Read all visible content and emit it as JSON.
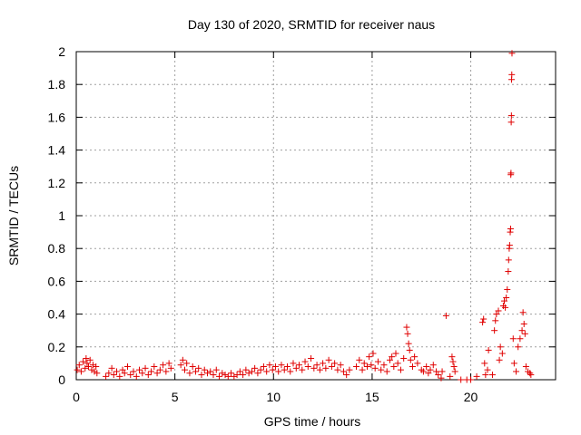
{
  "chart_data": {
    "type": "scatter",
    "title": "Day 130 of 2020, SRMTID for receiver naus",
    "xlabel": "GPS time / hours",
    "ylabel": "SRMTID / TECUs",
    "xlim": [
      0,
      24.3
    ],
    "ylim": [
      0,
      2
    ],
    "x_ticks": [
      0,
      5,
      10,
      15,
      20
    ],
    "x_tick_labels": [
      "0",
      "5",
      "10",
      "15",
      "20"
    ],
    "y_ticks": [
      0,
      0.2,
      0.4,
      0.6,
      0.8,
      1,
      1.2,
      1.4,
      1.6,
      1.8,
      2
    ],
    "y_tick_labels": [
      "0",
      "0.2",
      "0.4",
      "0.6",
      "0.8",
      "1",
      "1.2",
      "1.4",
      "1.6",
      "1.8",
      "2"
    ],
    "grid": true,
    "marker": "+",
    "color": "#e00000",
    "series": [
      {
        "name": "SRMTID",
        "points": [
          [
            0.05,
            0.06
          ],
          [
            0.15,
            0.09
          ],
          [
            0.25,
            0.05
          ],
          [
            0.35,
            0.11
          ],
          [
            0.45,
            0.07
          ],
          [
            0.5,
            0.13
          ],
          [
            0.55,
            0.1
          ],
          [
            0.62,
            0.08
          ],
          [
            0.7,
            0.12
          ],
          [
            0.78,
            0.06
          ],
          [
            0.85,
            0.09
          ],
          [
            0.92,
            0.05
          ],
          [
            1.0,
            0.08
          ],
          [
            1.05,
            0.04
          ],
          [
            1.5,
            0.02
          ],
          [
            1.65,
            0.04
          ],
          [
            1.8,
            0.07
          ],
          [
            1.9,
            0.03
          ],
          [
            2.05,
            0.05
          ],
          [
            2.2,
            0.02
          ],
          [
            2.35,
            0.06
          ],
          [
            2.45,
            0.04
          ],
          [
            2.6,
            0.08
          ],
          [
            2.75,
            0.03
          ],
          [
            2.9,
            0.05
          ],
          [
            3.05,
            0.02
          ],
          [
            3.2,
            0.06
          ],
          [
            3.35,
            0.04
          ],
          [
            3.5,
            0.07
          ],
          [
            3.65,
            0.03
          ],
          [
            3.8,
            0.05
          ],
          [
            3.95,
            0.08
          ],
          [
            4.1,
            0.04
          ],
          [
            4.25,
            0.06
          ],
          [
            4.4,
            0.09
          ],
          [
            4.55,
            0.05
          ],
          [
            4.7,
            0.1
          ],
          [
            4.8,
            0.07
          ],
          [
            5.3,
            0.09
          ],
          [
            5.4,
            0.12
          ],
          [
            5.5,
            0.06
          ],
          [
            5.6,
            0.1
          ],
          [
            5.75,
            0.04
          ],
          [
            5.9,
            0.08
          ],
          [
            6.05,
            0.05
          ],
          [
            6.2,
            0.07
          ],
          [
            6.35,
            0.03
          ],
          [
            6.5,
            0.06
          ],
          [
            6.65,
            0.04
          ],
          [
            6.8,
            0.05
          ],
          [
            6.95,
            0.03
          ],
          [
            7.1,
            0.06
          ],
          [
            7.25,
            0.02
          ],
          [
            7.4,
            0.04
          ],
          [
            7.55,
            0.03
          ],
          [
            7.7,
            0.02
          ],
          [
            7.85,
            0.04
          ],
          [
            8.0,
            0.02
          ],
          [
            8.15,
            0.03
          ],
          [
            8.3,
            0.05
          ],
          [
            8.45,
            0.03
          ],
          [
            8.6,
            0.06
          ],
          [
            8.75,
            0.04
          ],
          [
            8.9,
            0.05
          ],
          [
            9.05,
            0.07
          ],
          [
            9.2,
            0.04
          ],
          [
            9.35,
            0.06
          ],
          [
            9.5,
            0.08
          ],
          [
            9.65,
            0.05
          ],
          [
            9.8,
            0.09
          ],
          [
            9.95,
            0.06
          ],
          [
            10.1,
            0.08
          ],
          [
            10.25,
            0.05
          ],
          [
            10.4,
            0.09
          ],
          [
            10.55,
            0.06
          ],
          [
            10.7,
            0.08
          ],
          [
            10.85,
            0.05
          ],
          [
            11.0,
            0.1
          ],
          [
            11.15,
            0.07
          ],
          [
            11.3,
            0.09
          ],
          [
            11.45,
            0.06
          ],
          [
            11.6,
            0.11
          ],
          [
            11.75,
            0.08
          ],
          [
            11.9,
            0.13
          ],
          [
            12.05,
            0.07
          ],
          [
            12.2,
            0.09
          ],
          [
            12.35,
            0.06
          ],
          [
            12.5,
            0.1
          ],
          [
            12.65,
            0.07
          ],
          [
            12.8,
            0.12
          ],
          [
            12.95,
            0.08
          ],
          [
            13.1,
            0.1
          ],
          [
            13.25,
            0.06
          ],
          [
            13.4,
            0.09
          ],
          [
            13.55,
            0.05
          ],
          [
            13.7,
            0.03
          ],
          [
            13.85,
            0.06
          ],
          [
            14.2,
            0.08
          ],
          [
            14.35,
            0.12
          ],
          [
            14.5,
            0.06
          ],
          [
            14.6,
            0.1
          ],
          [
            14.75,
            0.08
          ],
          [
            14.85,
            0.14
          ],
          [
            14.95,
            0.09
          ],
          [
            15.05,
            0.16
          ],
          [
            15.15,
            0.07
          ],
          [
            15.3,
            0.11
          ],
          [
            15.45,
            0.06
          ],
          [
            15.6,
            0.09
          ],
          [
            15.75,
            0.05
          ],
          [
            15.9,
            0.12
          ],
          [
            16.0,
            0.14
          ],
          [
            16.1,
            0.08
          ],
          [
            16.2,
            0.16
          ],
          [
            16.3,
            0.1
          ],
          [
            16.45,
            0.06
          ],
          [
            16.6,
            0.13
          ],
          [
            16.75,
            0.32
          ],
          [
            16.8,
            0.28
          ],
          [
            16.85,
            0.22
          ],
          [
            16.9,
            0.18
          ],
          [
            16.95,
            0.12
          ],
          [
            17.05,
            0.08
          ],
          [
            17.15,
            0.14
          ],
          [
            17.3,
            0.1
          ],
          [
            17.5,
            0.06
          ],
          [
            17.6,
            0.05
          ],
          [
            17.75,
            0.08
          ],
          [
            17.85,
            0.04
          ],
          [
            17.95,
            0.06
          ],
          [
            18.1,
            0.09
          ],
          [
            18.25,
            0.05
          ],
          [
            18.35,
            0.03
          ],
          [
            18.5,
            0.01
          ],
          [
            18.55,
            0.05
          ],
          [
            18.75,
            0.39
          ],
          [
            18.95,
            0.02
          ],
          [
            19.05,
            0.14
          ],
          [
            19.1,
            0.11
          ],
          [
            19.15,
            0.08
          ],
          [
            19.2,
            0.05
          ],
          [
            19.5,
            0.0
          ],
          [
            19.8,
            0.0
          ],
          [
            20.0,
            0.0
          ],
          [
            20.3,
            0.02
          ],
          [
            20.6,
            0.35
          ],
          [
            20.65,
            0.37
          ],
          [
            20.7,
            0.1
          ],
          [
            20.75,
            0.03
          ],
          [
            20.85,
            0.06
          ],
          [
            20.9,
            0.18
          ],
          [
            21.1,
            0.03
          ],
          [
            21.2,
            0.3
          ],
          [
            21.25,
            0.36
          ],
          [
            21.3,
            0.4
          ],
          [
            21.4,
            0.42
          ],
          [
            21.45,
            0.12
          ],
          [
            21.5,
            0.2
          ],
          [
            21.6,
            0.16
          ],
          [
            21.65,
            0.45
          ],
          [
            21.7,
            0.48
          ],
          [
            21.75,
            0.44
          ],
          [
            21.8,
            0.5
          ],
          [
            21.85,
            0.55
          ],
          [
            21.9,
            0.66
          ],
          [
            21.92,
            0.73
          ],
          [
            21.95,
            0.8
          ],
          [
            21.97,
            0.82
          ],
          [
            22.0,
            0.9
          ],
          [
            22.02,
            0.92
          ],
          [
            22.03,
            1.25
          ],
          [
            22.04,
            1.26
          ],
          [
            22.05,
            1.57
          ],
          [
            22.06,
            1.61
          ],
          [
            22.07,
            1.83
          ],
          [
            22.08,
            1.86
          ],
          [
            22.09,
            1.99
          ],
          [
            22.15,
            0.25
          ],
          [
            22.2,
            0.1
          ],
          [
            22.3,
            0.05
          ],
          [
            22.4,
            0.2
          ],
          [
            22.5,
            0.25
          ],
          [
            22.6,
            0.3
          ],
          [
            22.65,
            0.41
          ],
          [
            22.7,
            0.34
          ],
          [
            22.75,
            0.28
          ],
          [
            22.8,
            0.08
          ],
          [
            22.9,
            0.05
          ],
          [
            23.0,
            0.04
          ],
          [
            23.05,
            0.03
          ]
        ]
      }
    ]
  }
}
